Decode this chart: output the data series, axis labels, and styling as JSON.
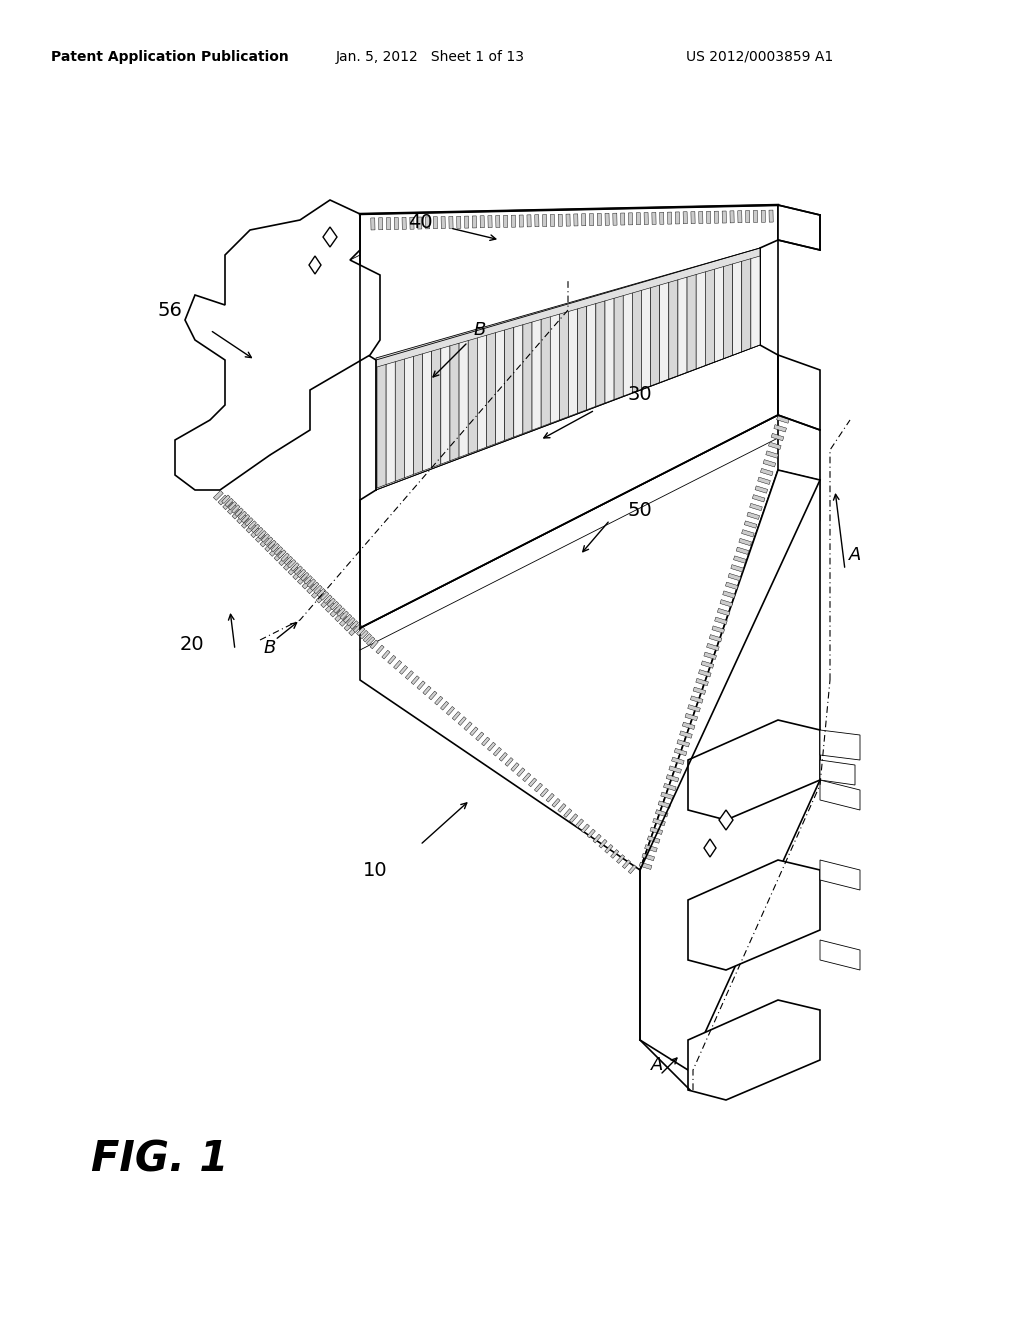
{
  "header_left": "Patent Application Publication",
  "header_center": "Jan. 5, 2012   Sheet 1 of 13",
  "header_right": "US 2012/0003859 A1",
  "figure_label": "FIG. 1",
  "background_color": "#ffffff",
  "lw_main": 1.2,
  "lw_thin": 0.6,
  "lw_thick": 1.8,
  "connector_color": "white",
  "edge_color": "black"
}
